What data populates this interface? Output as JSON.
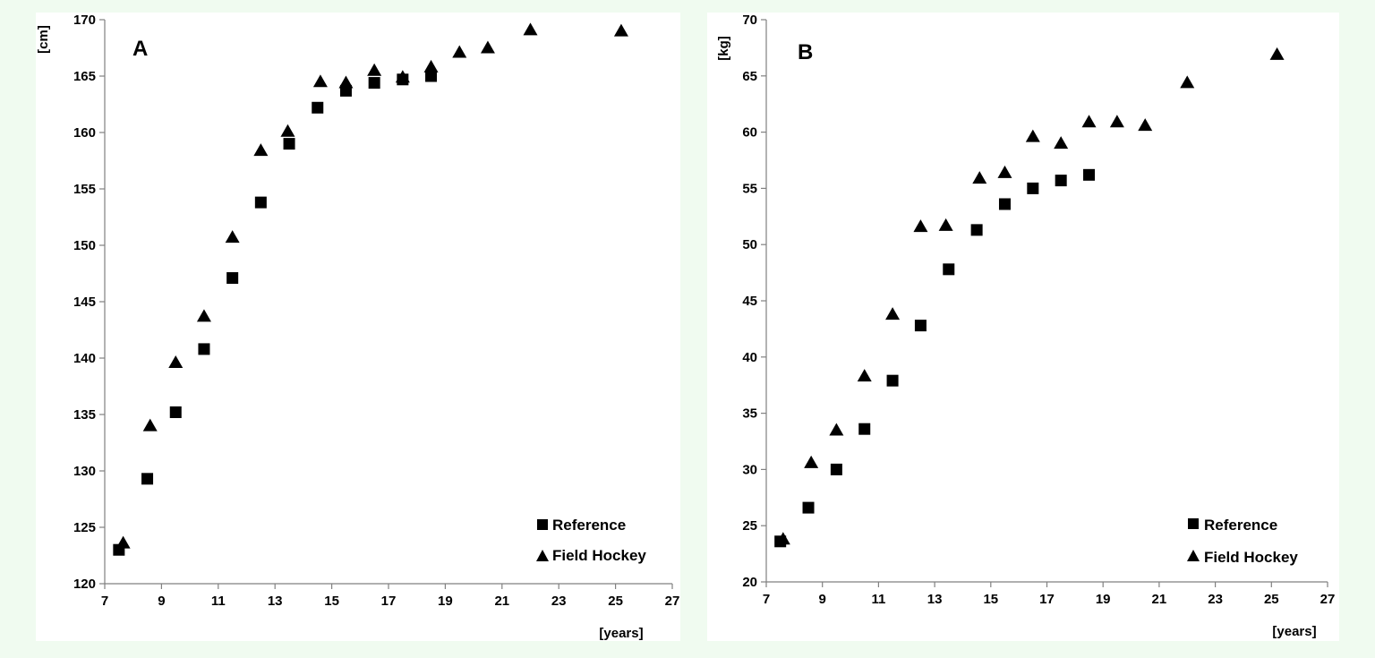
{
  "chart_data": [
    {
      "type": "scatter",
      "panel_label": "A",
      "title": "",
      "xlabel": "[years]",
      "ylabel": "[cm]",
      "xlim": [
        7,
        27
      ],
      "ylim": [
        120,
        170
      ],
      "xticks": [
        7,
        9,
        11,
        13,
        15,
        17,
        19,
        21,
        23,
        25,
        27
      ],
      "yticks": [
        120,
        125,
        130,
        135,
        140,
        145,
        150,
        155,
        160,
        165,
        170
      ],
      "grid": false,
      "legend": "bottom-right",
      "series": [
        {
          "name": "Reference",
          "marker": "square",
          "color": "#000000",
          "x": [
            7.5,
            8.5,
            9.5,
            10.5,
            11.5,
            12.5,
            13.5,
            14.5,
            15.5,
            16.5,
            17.5,
            18.5
          ],
          "y": [
            123.0,
            129.3,
            135.2,
            140.8,
            147.1,
            153.8,
            159.0,
            162.2,
            163.7,
            164.4,
            164.7,
            165.0
          ]
        },
        {
          "name": "Field Hockey",
          "marker": "triangle",
          "color": "#000000",
          "x": [
            7.65,
            8.6,
            9.5,
            10.5,
            11.5,
            12.5,
            13.45,
            14.6,
            15.5,
            16.5,
            17.5,
            18.5,
            19.5,
            20.5,
            22.0,
            25.2
          ],
          "y": [
            123.6,
            134.0,
            139.6,
            143.7,
            150.7,
            158.4,
            160.1,
            164.5,
            164.4,
            165.5,
            164.9,
            165.8,
            167.1,
            167.5,
            169.1,
            169.0
          ]
        }
      ]
    },
    {
      "type": "scatter",
      "panel_label": "B",
      "title": "",
      "xlabel": "[years]",
      "ylabel": "[kg]",
      "xlim": [
        7,
        27
      ],
      "ylim": [
        20,
        70
      ],
      "xticks": [
        7,
        9,
        11,
        13,
        15,
        17,
        19,
        21,
        23,
        25,
        27
      ],
      "yticks": [
        20,
        25,
        30,
        35,
        40,
        45,
        50,
        55,
        60,
        65,
        70
      ],
      "grid": false,
      "legend": "bottom-right",
      "series": [
        {
          "name": "Reference",
          "marker": "square",
          "color": "#000000",
          "x": [
            7.5,
            8.5,
            9.5,
            10.5,
            11.5,
            12.5,
            13.5,
            14.5,
            15.5,
            16.5,
            17.5,
            18.5
          ],
          "y": [
            23.6,
            26.6,
            30.0,
            33.6,
            37.9,
            42.8,
            47.8,
            51.3,
            53.6,
            55.0,
            55.7,
            56.2
          ]
        },
        {
          "name": "Field Hockey",
          "marker": "triangle",
          "color": "#000000",
          "x": [
            7.6,
            8.6,
            9.5,
            10.5,
            11.5,
            12.5,
            13.4,
            14.6,
            15.5,
            16.5,
            17.5,
            18.5,
            19.5,
            20.5,
            22.0,
            25.2
          ],
          "y": [
            23.8,
            30.6,
            33.5,
            38.3,
            43.8,
            51.6,
            51.7,
            55.9,
            56.4,
            59.6,
            59.0,
            60.9,
            60.9,
            60.6,
            64.4,
            66.9
          ]
        }
      ]
    }
  ]
}
